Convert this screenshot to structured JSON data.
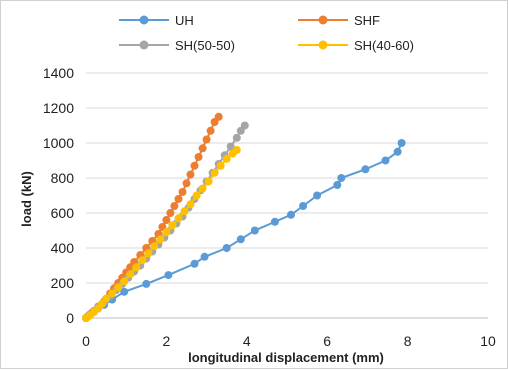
{
  "chart_data": {
    "type": "line",
    "xlabel": "longitudinal displacement (mm)",
    "ylabel": "load (kN)",
    "xlim": [
      0,
      10
    ],
    "ylim": [
      0,
      1400
    ],
    "xticks": [
      0,
      2,
      4,
      6,
      8,
      10
    ],
    "yticks": [
      0,
      200,
      400,
      600,
      800,
      1000,
      1200,
      1400
    ],
    "grid": "horizontal",
    "legend_position": "top",
    "series": [
      {
        "name": "UH",
        "color": "#5b9bd5",
        "marker": "circle",
        "points": [
          [
            0,
            0
          ],
          [
            0.05,
            10
          ],
          [
            0.1,
            20
          ],
          [
            0.15,
            30
          ],
          [
            0.2,
            40
          ],
          [
            0.3,
            55
          ],
          [
            0.45,
            75
          ],
          [
            0.65,
            105
          ],
          [
            0.95,
            150
          ],
          [
            1.5,
            195
          ],
          [
            2.05,
            245
          ],
          [
            2.7,
            310
          ],
          [
            2.95,
            350
          ],
          [
            3.5,
            400
          ],
          [
            3.85,
            450
          ],
          [
            4.2,
            500
          ],
          [
            4.7,
            550
          ],
          [
            5.1,
            590
          ],
          [
            5.4,
            640
          ],
          [
            5.75,
            700
          ],
          [
            6.25,
            760
          ],
          [
            6.35,
            800
          ],
          [
            6.95,
            850
          ],
          [
            7.45,
            900
          ],
          [
            7.75,
            950
          ],
          [
            7.85,
            1000
          ]
        ]
      },
      {
        "name": "SHF",
        "color": "#ed7d31",
        "marker": "circle",
        "points": [
          [
            0,
            0
          ],
          [
            0.1,
            20
          ],
          [
            0.2,
            40
          ],
          [
            0.3,
            60
          ],
          [
            0.4,
            80
          ],
          [
            0.5,
            110
          ],
          [
            0.6,
            140
          ],
          [
            0.7,
            170
          ],
          [
            0.8,
            200
          ],
          [
            0.9,
            230
          ],
          [
            1.0,
            260
          ],
          [
            1.1,
            290
          ],
          [
            1.2,
            320
          ],
          [
            1.35,
            360
          ],
          [
            1.5,
            400
          ],
          [
            1.65,
            440
          ],
          [
            1.8,
            480
          ],
          [
            1.9,
            520
          ],
          [
            2.0,
            560
          ],
          [
            2.1,
            600
          ],
          [
            2.2,
            640
          ],
          [
            2.3,
            680
          ],
          [
            2.4,
            720
          ],
          [
            2.5,
            770
          ],
          [
            2.6,
            820
          ],
          [
            2.7,
            870
          ],
          [
            2.8,
            920
          ],
          [
            2.9,
            970
          ],
          [
            3.0,
            1020
          ],
          [
            3.1,
            1070
          ],
          [
            3.2,
            1120
          ],
          [
            3.3,
            1150
          ]
        ]
      },
      {
        "name": "SH(50-50)",
        "color": "#a5a5a5",
        "marker": "circle",
        "points": [
          [
            0,
            0
          ],
          [
            0.1,
            20
          ],
          [
            0.2,
            40
          ],
          [
            0.3,
            65
          ],
          [
            0.45,
            95
          ],
          [
            0.6,
            125
          ],
          [
            0.75,
            160
          ],
          [
            0.9,
            195
          ],
          [
            1.05,
            230
          ],
          [
            1.2,
            265
          ],
          [
            1.35,
            300
          ],
          [
            1.5,
            340
          ],
          [
            1.65,
            380
          ],
          [
            1.8,
            420
          ],
          [
            1.95,
            460
          ],
          [
            2.1,
            500
          ],
          [
            2.25,
            540
          ],
          [
            2.4,
            580
          ],
          [
            2.55,
            630
          ],
          [
            2.7,
            680
          ],
          [
            2.85,
            730
          ],
          [
            3.0,
            780
          ],
          [
            3.15,
            830
          ],
          [
            3.3,
            880
          ],
          [
            3.45,
            930
          ],
          [
            3.6,
            980
          ],
          [
            3.75,
            1030
          ],
          [
            3.85,
            1070
          ],
          [
            3.95,
            1100
          ]
        ]
      },
      {
        "name": "SH(40-60)",
        "color": "#ffc000",
        "marker": "circle",
        "points": [
          [
            0,
            0
          ],
          [
            0.1,
            15
          ],
          [
            0.2,
            35
          ],
          [
            0.3,
            55
          ],
          [
            0.4,
            80
          ],
          [
            0.5,
            110
          ],
          [
            0.65,
            140
          ],
          [
            0.8,
            175
          ],
          [
            0.95,
            210
          ],
          [
            1.1,
            250
          ],
          [
            1.25,
            290
          ],
          [
            1.4,
            330
          ],
          [
            1.55,
            370
          ],
          [
            1.7,
            410
          ],
          [
            1.85,
            450
          ],
          [
            2.0,
            490
          ],
          [
            2.15,
            530
          ],
          [
            2.3,
            570
          ],
          [
            2.45,
            610
          ],
          [
            2.6,
            650
          ],
          [
            2.75,
            700
          ],
          [
            2.9,
            740
          ],
          [
            3.05,
            780
          ],
          [
            3.2,
            830
          ],
          [
            3.35,
            870
          ],
          [
            3.5,
            910
          ],
          [
            3.65,
            940
          ],
          [
            3.75,
            960
          ]
        ]
      }
    ]
  }
}
